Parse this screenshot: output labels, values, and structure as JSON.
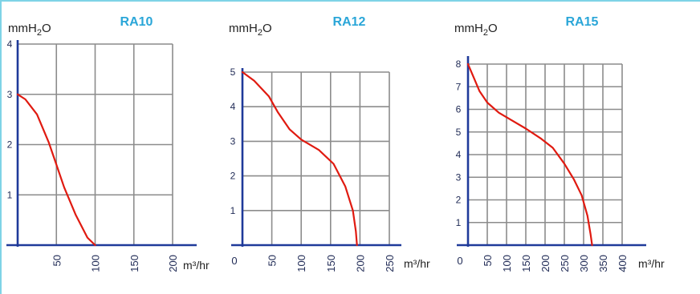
{
  "colors": {
    "grid": "#8c8c8c",
    "axis": "#1f3a9a",
    "curve": "#e01a10",
    "title": "#2aa6d8",
    "frame": "#7fd3e6"
  },
  "chart_data": [
    {
      "type": "line",
      "title": "RA10",
      "ylabel": "mmH2O",
      "xlabel": "m³/hr",
      "x_ticks": [
        "50",
        "100",
        "150",
        "200"
      ],
      "y_ticks": [
        "1",
        "2",
        "3",
        "4"
      ],
      "xlim": [
        0,
        200
      ],
      "ylim": [
        0,
        4
      ],
      "grid": true,
      "series": [
        {
          "x": [
            0,
            10,
            25,
            40,
            50,
            60,
            75,
            90,
            100
          ],
          "y": [
            3,
            2.9,
            2.6,
            2.05,
            1.6,
            1.15,
            0.6,
            0.15,
            0
          ]
        }
      ]
    },
    {
      "type": "line",
      "title": "RA12",
      "ylabel": "mmH2O",
      "xlabel": "m³/hr",
      "x_ticks": [
        "0",
        "50",
        "100",
        "150",
        "200",
        "250"
      ],
      "y_ticks": [
        "1",
        "2",
        "3",
        "4",
        "5"
      ],
      "xlim": [
        0,
        250
      ],
      "ylim": [
        0,
        5
      ],
      "grid": true,
      "series": [
        {
          "x": [
            0,
            20,
            45,
            60,
            80,
            100,
            130,
            155,
            175,
            188,
            193,
            195
          ],
          "y": [
            5,
            4.75,
            4.3,
            3.85,
            3.35,
            3.05,
            2.75,
            2.35,
            1.7,
            1.0,
            0.4,
            0
          ]
        }
      ]
    },
    {
      "type": "line",
      "title": "RA15",
      "ylabel": "mmH2O",
      "xlabel": "m³/hr",
      "x_ticks": [
        "0",
        "50",
        "100",
        "150",
        "200",
        "250",
        "300",
        "350",
        "400"
      ],
      "y_ticks": [
        "1",
        "2",
        "3",
        "4",
        "5",
        "6",
        "7",
        "8"
      ],
      "xlim": [
        0,
        400
      ],
      "ylim": [
        0,
        8
      ],
      "grid": true,
      "series": [
        {
          "x": [
            0,
            15,
            30,
            50,
            80,
            110,
            150,
            190,
            220,
            250,
            275,
            295,
            310,
            318,
            322
          ],
          "y": [
            8,
            7.4,
            6.8,
            6.3,
            5.85,
            5.55,
            5.15,
            4.7,
            4.3,
            3.6,
            2.9,
            2.2,
            1.3,
            0.5,
            0
          ]
        }
      ]
    }
  ]
}
